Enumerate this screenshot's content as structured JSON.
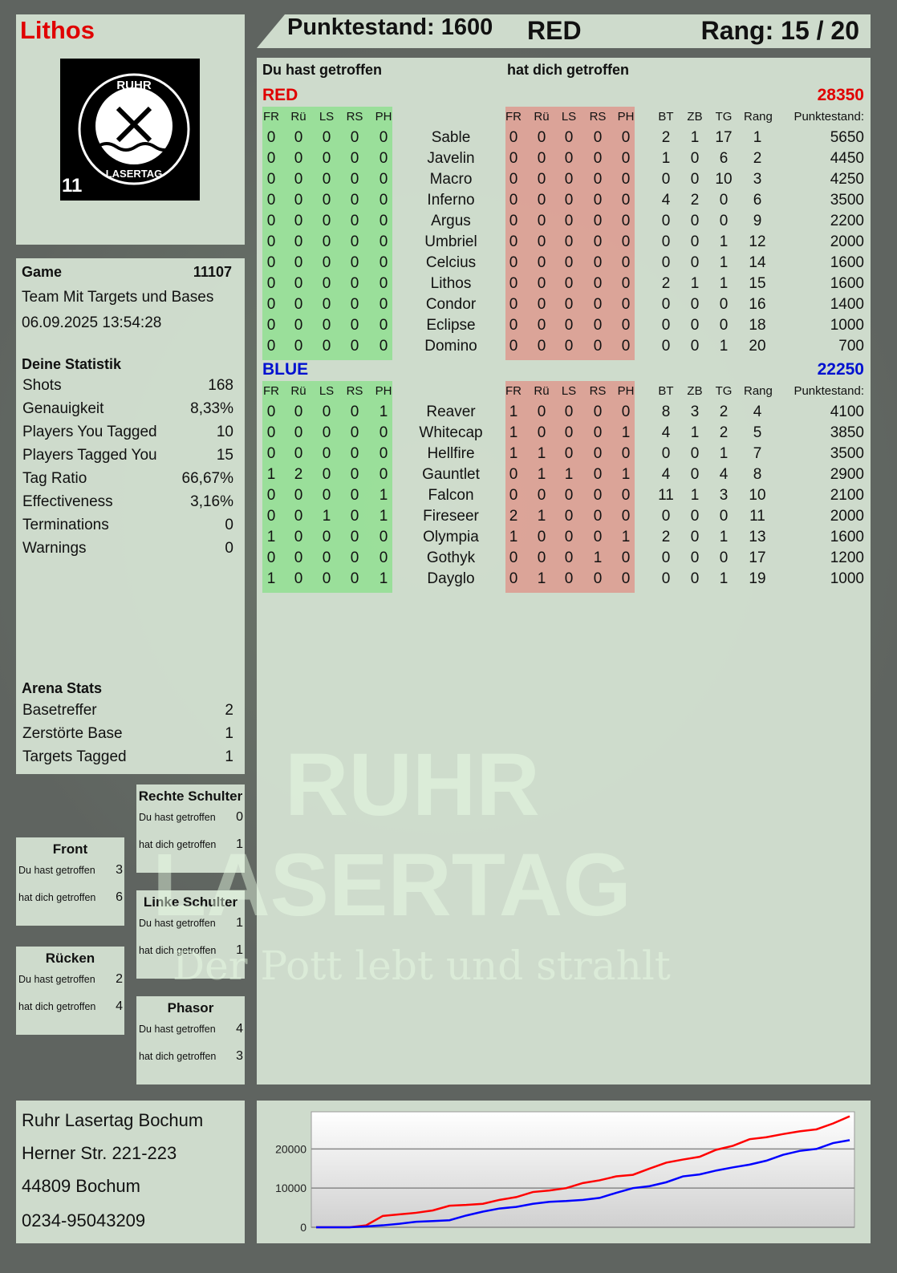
{
  "player": {
    "name": "Lithos",
    "logo_text": "RUHR LASERTAG",
    "logo_number": "11"
  },
  "topbar": {
    "score_label": "Punktestand: 1600",
    "team": "RED",
    "rank_label": "Rang: 15 / 20"
  },
  "game": {
    "label": "Game",
    "id": "11107",
    "mode": "Team Mit Targets und Bases",
    "datetime": "06.09.2025 13:54:28"
  },
  "stats": {
    "title": "Deine Statistik",
    "items": [
      {
        "label": "Shots",
        "value": "168"
      },
      {
        "label": "Genauigkeit",
        "value": "8,33%"
      },
      {
        "label": "Players You Tagged",
        "value": "10"
      },
      {
        "label": "Players Tagged You",
        "value": "15"
      },
      {
        "label": "Tag Ratio",
        "value": "66,67%"
      },
      {
        "label": "Effectiveness",
        "value": "3,16%"
      },
      {
        "label": "Terminations",
        "value": "0"
      },
      {
        "label": "Warnings",
        "value": "0"
      }
    ]
  },
  "arena": {
    "title": "Arena Stats",
    "items": [
      {
        "label": "Basetreffer",
        "value": "2"
      },
      {
        "label": "Zerstörte Base",
        "value": "1"
      },
      {
        "label": "Targets Tagged",
        "value": "1"
      }
    ]
  },
  "zones": [
    {
      "name": "Rechte Schulter",
      "hit_label": "Du hast getroffen",
      "hit": "0",
      "got_label": "hat dich getroffen",
      "got": "1"
    },
    {
      "name": "Front",
      "hit_label": "Du hast getroffen",
      "hit": "3",
      "got_label": "hat dich getroffen",
      "got": "6"
    },
    {
      "name": "Linke Schulter",
      "hit_label": "Du hast getroffen",
      "hit": "1",
      "got_label": "hat dich getroffen",
      "got": "1"
    },
    {
      "name": "Rücken",
      "hit_label": "Du hast getroffen",
      "hit": "2",
      "got_label": "hat dich getroffen",
      "got": "4"
    },
    {
      "name": "Phasor",
      "hit_label": "Du hast getroffen",
      "hit": "4",
      "got_label": "hat dich getroffen",
      "got": "3"
    }
  ],
  "address": [
    "Ruhr Lasertag Bochum",
    "Herner Str. 221-223",
    "44809 Bochum",
    "0234-95043209"
  ],
  "table": {
    "you_hit_label": "Du hast getroffen",
    "hit_you_label": "hat dich getroffen",
    "zone_headers": [
      "FR",
      "Rü",
      "LS",
      "RS",
      "PH"
    ],
    "stat_headers": [
      "BT",
      "ZB",
      "TG",
      "Rang",
      "Punktestand:"
    ],
    "teams": [
      {
        "name": "RED",
        "score": "28350",
        "color": "#e00000",
        "rows": [
          {
            "name": "Sable",
            "hit": [
              0,
              0,
              0,
              0,
              0
            ],
            "got": [
              0,
              0,
              0,
              0,
              0
            ],
            "bt": 2,
            "zb": 1,
            "tg": 17,
            "rank": 1,
            "score": 5650
          },
          {
            "name": "Javelin",
            "hit": [
              0,
              0,
              0,
              0,
              0
            ],
            "got": [
              0,
              0,
              0,
              0,
              0
            ],
            "bt": 1,
            "zb": 0,
            "tg": 6,
            "rank": 2,
            "score": 4450
          },
          {
            "name": "Macro",
            "hit": [
              0,
              0,
              0,
              0,
              0
            ],
            "got": [
              0,
              0,
              0,
              0,
              0
            ],
            "bt": 0,
            "zb": 0,
            "tg": 10,
            "rank": 3,
            "score": 4250
          },
          {
            "name": "Inferno",
            "hit": [
              0,
              0,
              0,
              0,
              0
            ],
            "got": [
              0,
              0,
              0,
              0,
              0
            ],
            "bt": 4,
            "zb": 2,
            "tg": 0,
            "rank": 6,
            "score": 3500
          },
          {
            "name": "Argus",
            "hit": [
              0,
              0,
              0,
              0,
              0
            ],
            "got": [
              0,
              0,
              0,
              0,
              0
            ],
            "bt": 0,
            "zb": 0,
            "tg": 0,
            "rank": 9,
            "score": 2200
          },
          {
            "name": "Umbriel",
            "hit": [
              0,
              0,
              0,
              0,
              0
            ],
            "got": [
              0,
              0,
              0,
              0,
              0
            ],
            "bt": 0,
            "zb": 0,
            "tg": 1,
            "rank": 12,
            "score": 2000
          },
          {
            "name": "Celcius",
            "hit": [
              0,
              0,
              0,
              0,
              0
            ],
            "got": [
              0,
              0,
              0,
              0,
              0
            ],
            "bt": 0,
            "zb": 0,
            "tg": 1,
            "rank": 14,
            "score": 1600
          },
          {
            "name": "Lithos",
            "hit": [
              0,
              0,
              0,
              0,
              0
            ],
            "got": [
              0,
              0,
              0,
              0,
              0
            ],
            "bt": 2,
            "zb": 1,
            "tg": 1,
            "rank": 15,
            "score": 1600
          },
          {
            "name": "Condor",
            "hit": [
              0,
              0,
              0,
              0,
              0
            ],
            "got": [
              0,
              0,
              0,
              0,
              0
            ],
            "bt": 0,
            "zb": 0,
            "tg": 0,
            "rank": 16,
            "score": 1400
          },
          {
            "name": "Eclipse",
            "hit": [
              0,
              0,
              0,
              0,
              0
            ],
            "got": [
              0,
              0,
              0,
              0,
              0
            ],
            "bt": 0,
            "zb": 0,
            "tg": 0,
            "rank": 18,
            "score": 1000
          },
          {
            "name": "Domino",
            "hit": [
              0,
              0,
              0,
              0,
              0
            ],
            "got": [
              0,
              0,
              0,
              0,
              0
            ],
            "bt": 0,
            "zb": 0,
            "tg": 1,
            "rank": 20,
            "score": 700
          }
        ]
      },
      {
        "name": "BLUE",
        "score": "22250",
        "color": "#0010d0",
        "rows": [
          {
            "name": "Reaver",
            "hit": [
              0,
              0,
              0,
              0,
              1
            ],
            "got": [
              1,
              0,
              0,
              0,
              0
            ],
            "bt": 8,
            "zb": 3,
            "tg": 2,
            "rank": 4,
            "score": 4100
          },
          {
            "name": "Whitecap",
            "hit": [
              0,
              0,
              0,
              0,
              0
            ],
            "got": [
              1,
              0,
              0,
              0,
              1
            ],
            "bt": 4,
            "zb": 1,
            "tg": 2,
            "rank": 5,
            "score": 3850
          },
          {
            "name": "Hellfire",
            "hit": [
              0,
              0,
              0,
              0,
              0
            ],
            "got": [
              1,
              1,
              0,
              0,
              0
            ],
            "bt": 0,
            "zb": 0,
            "tg": 1,
            "rank": 7,
            "score": 3500
          },
          {
            "name": "Gauntlet",
            "hit": [
              1,
              2,
              0,
              0,
              0
            ],
            "got": [
              0,
              1,
              1,
              0,
              1
            ],
            "bt": 4,
            "zb": 0,
            "tg": 4,
            "rank": 8,
            "score": 2900
          },
          {
            "name": "Falcon",
            "hit": [
              0,
              0,
              0,
              0,
              1
            ],
            "got": [
              0,
              0,
              0,
              0,
              0
            ],
            "bt": 11,
            "zb": 1,
            "tg": 3,
            "rank": 10,
            "score": 2100
          },
          {
            "name": "Fireseer",
            "hit": [
              0,
              0,
              1,
              0,
              1
            ],
            "got": [
              2,
              1,
              0,
              0,
              0
            ],
            "bt": 0,
            "zb": 0,
            "tg": 0,
            "rank": 11,
            "score": 2000
          },
          {
            "name": "Olympia",
            "hit": [
              1,
              0,
              0,
              0,
              0
            ],
            "got": [
              1,
              0,
              0,
              0,
              1
            ],
            "bt": 2,
            "zb": 0,
            "tg": 1,
            "rank": 13,
            "score": 1600
          },
          {
            "name": "Gothyk",
            "hit": [
              0,
              0,
              0,
              0,
              0
            ],
            "got": [
              0,
              0,
              0,
              1,
              0
            ],
            "bt": 0,
            "zb": 0,
            "tg": 0,
            "rank": 17,
            "score": 1200
          },
          {
            "name": "Dayglo",
            "hit": [
              1,
              0,
              0,
              0,
              1
            ],
            "got": [
              0,
              1,
              0,
              0,
              0
            ],
            "bt": 0,
            "zb": 0,
            "tg": 1,
            "rank": 19,
            "score": 1000
          }
        ]
      }
    ]
  },
  "watermark": {
    "line1": "RUHR",
    "line2": "LASERTAG",
    "tagline": "Der Pott lebt und strahlt"
  },
  "chart_data": {
    "type": "line",
    "title": "",
    "xlabel": "",
    "ylabel": "",
    "ylim": [
      0,
      29500
    ],
    "grid": true,
    "yticks": [
      0,
      10000,
      20000
    ],
    "ytick_labels": [
      "0",
      "10000",
      "20000"
    ],
    "series": [
      {
        "color": "#ff0000",
        "values": [
          0,
          0,
          0,
          500,
          2900,
          3300,
          3700,
          4300,
          5500,
          5700,
          6000,
          7000,
          7700,
          9000,
          9400,
          10000,
          11300,
          12000,
          13000,
          13400,
          15000,
          16500,
          17300,
          18000,
          19800,
          20800,
          22500,
          23000,
          23800,
          24500,
          25000,
          26500,
          28350
        ]
      },
      {
        "color": "#0000ff",
        "values": [
          0,
          0,
          0,
          200,
          500,
          900,
          1400,
          1600,
          1800,
          3000,
          4000,
          4800,
          5200,
          6000,
          6500,
          6700,
          7000,
          7500,
          8800,
          10000,
          10500,
          11500,
          13000,
          13500,
          14500,
          15300,
          16000,
          17000,
          18500,
          19500,
          20000,
          21500,
          22250
        ]
      }
    ]
  }
}
